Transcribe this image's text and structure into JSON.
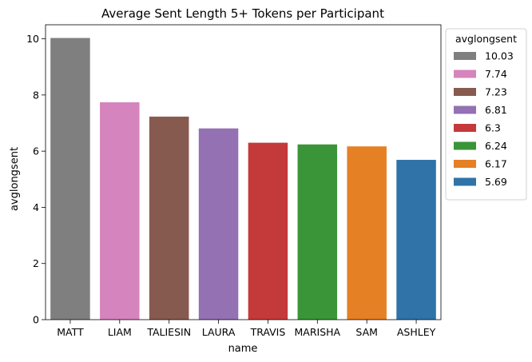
{
  "chart_data": {
    "type": "bar",
    "title": "Average Sent Length 5+ Tokens per Participant",
    "xlabel": "name",
    "ylabel": "avglongsent",
    "ylim": [
      0,
      10.5
    ],
    "yticks": [
      0,
      2,
      4,
      6,
      8,
      10
    ],
    "categories": [
      "MATT",
      "LIAM",
      "TALIESIN",
      "LAURA",
      "TRAVIS",
      "MARISHA",
      "SAM",
      "ASHLEY"
    ],
    "values": [
      10.03,
      7.74,
      7.23,
      6.81,
      6.3,
      6.24,
      6.17,
      5.69
    ],
    "colors": [
      "#7f7f7f",
      "#d684bd",
      "#875a50",
      "#9371b2",
      "#c43a3b",
      "#3a9538",
      "#e58025",
      "#2f73a8"
    ],
    "grid": false,
    "legend": {
      "title": "avglongsent",
      "placement": "outside-right",
      "entries": [
        {
          "label": "10.03",
          "color": "#7f7f7f"
        },
        {
          "label": "7.74",
          "color": "#d684bd"
        },
        {
          "label": "7.23",
          "color": "#875a50"
        },
        {
          "label": "6.81",
          "color": "#9371b2"
        },
        {
          "label": "6.3",
          "color": "#c43a3b"
        },
        {
          "label": "6.24",
          "color": "#3a9538"
        },
        {
          "label": "6.17",
          "color": "#e58025"
        },
        {
          "label": "5.69",
          "color": "#2f73a8"
        }
      ]
    }
  }
}
